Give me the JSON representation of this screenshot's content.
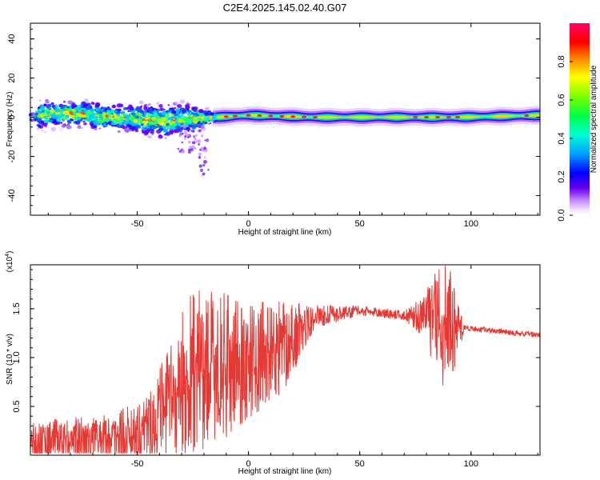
{
  "chart_data": [
    {
      "type": "heatmap",
      "title": "C2E4.2025.145.02.40.G07",
      "xlabel": "Height of straight line (km)",
      "ylabel": "Frequency (Hz)",
      "xlim": [
        -98,
        131
      ],
      "ylim": [
        -50,
        48
      ],
      "xticks": [
        -50,
        0,
        50,
        100
      ],
      "yticks": [
        -40,
        -20,
        0,
        20,
        40
      ],
      "colorbar": {
        "label": "Normalized spectral amplitude",
        "range": [
          0,
          1
        ],
        "ticks": [
          "0.0",
          "0.2",
          "0.4",
          "0.6",
          "0.8"
        ]
      },
      "ridge": {
        "description_points": [
          {
            "x": -95,
            "center": 1,
            "spread": 9
          },
          {
            "x": -80,
            "center": 2,
            "spread": 8
          },
          {
            "x": -60,
            "center": 0,
            "spread": 8
          },
          {
            "x": -40,
            "center": -2,
            "spread": 10
          },
          {
            "x": -28,
            "center": -1,
            "spread": 10
          },
          {
            "x": -15,
            "center": 0,
            "spread": 3
          },
          {
            "x": 0,
            "center": 1,
            "spread": 2
          },
          {
            "x": 30,
            "center": 0,
            "spread": 2
          },
          {
            "x": 80,
            "center": 0,
            "spread": 2
          },
          {
            "x": 95,
            "center": 0,
            "spread": 2
          },
          {
            "x": 131,
            "center": 1,
            "spread": 2
          }
        ]
      }
    },
    {
      "type": "line",
      "xlabel": "Height of straight line (km)",
      "ylabel": "SNR (10 * v/v)",
      "yscale_note": "(x10",
      "yscale_exp": "4",
      "xlim": [
        -98,
        131
      ],
      "ylim": [
        0,
        1.95
      ],
      "xticks": [
        -50,
        0,
        50,
        100
      ],
      "yticks": [
        0.5,
        1.0,
        1.5
      ],
      "ytick_labels": [
        "0.5",
        "1.0",
        "1.5"
      ],
      "color": "#e53935",
      "envelope": [
        {
          "x": -98,
          "mean": 0.15,
          "amp": 0.2
        },
        {
          "x": -60,
          "mean": 0.18,
          "amp": 0.25
        },
        {
          "x": -45,
          "mean": 0.3,
          "amp": 0.35
        },
        {
          "x": -35,
          "mean": 0.55,
          "amp": 0.6
        },
        {
          "x": -25,
          "mean": 0.85,
          "amp": 0.9
        },
        {
          "x": -15,
          "mean": 0.9,
          "amp": 0.8
        },
        {
          "x": 0,
          "mean": 0.95,
          "amp": 0.6
        },
        {
          "x": 15,
          "mean": 1.1,
          "amp": 0.5
        },
        {
          "x": 30,
          "mean": 1.42,
          "amp": 0.12
        },
        {
          "x": 50,
          "mean": 1.48,
          "amp": 0.05
        },
        {
          "x": 70,
          "mean": 1.43,
          "amp": 0.05
        },
        {
          "x": 78,
          "mean": 1.42,
          "amp": 0.2
        },
        {
          "x": 88,
          "mean": 1.4,
          "amp": 0.75
        },
        {
          "x": 94,
          "mean": 1.3,
          "amp": 0.35
        },
        {
          "x": 97,
          "mean": 1.3,
          "amp": 0.03
        },
        {
          "x": 131,
          "mean": 1.23,
          "amp": 0.03
        }
      ]
    }
  ]
}
